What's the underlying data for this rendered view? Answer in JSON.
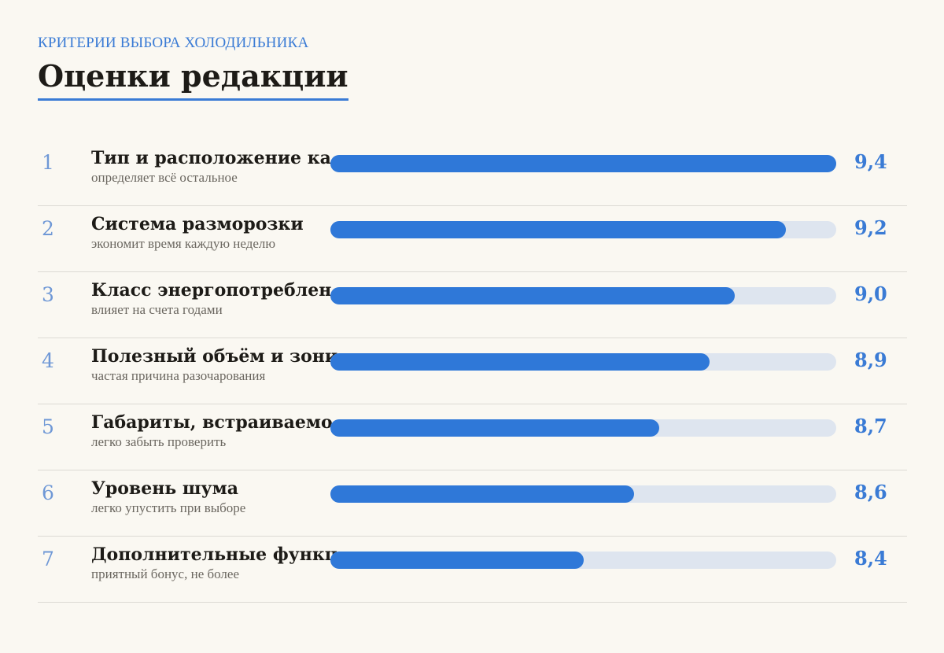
{
  "header": {
    "eyebrow": "КРИТЕРИИ ВЫБОРА ХОЛОДИЛЬНИКА",
    "title": "Оценки редакции"
  },
  "colors": {
    "accent": "#2f78d8",
    "track": "#dee5ef",
    "rank": "#6f98d6",
    "background": "#faf8f2"
  },
  "chart_data": {
    "type": "bar",
    "orientation": "horizontal",
    "xlim": [
      7.4,
      9.4
    ],
    "categories": [
      "Тип и расположение ка",
      "Система разморозки",
      "Класс энергопотреблен",
      "Полезный объём и зони",
      "Габариты, встраиваемо",
      "Уровень шума",
      "Дополнительные функц"
    ],
    "values": [
      9.4,
      9.2,
      9.0,
      8.9,
      8.7,
      8.6,
      8.4
    ],
    "rows": [
      {
        "rank": "1",
        "name": "Тип и расположение ка",
        "note": "определяет всё остальное",
        "value": 9.4,
        "value_label": "9,4"
      },
      {
        "rank": "2",
        "name": "Система разморозки",
        "note": "экономит время каждую неделю",
        "value": 9.2,
        "value_label": "9,2"
      },
      {
        "rank": "3",
        "name": "Класс энергопотреблен",
        "note": "влияет на счета годами",
        "value": 9.0,
        "value_label": "9,0"
      },
      {
        "rank": "4",
        "name": "Полезный объём и зони",
        "note": "частая причина разочарования",
        "value": 8.9,
        "value_label": "8,9"
      },
      {
        "rank": "5",
        "name": "Габариты, встраиваемо",
        "note": "легко забыть проверить",
        "value": 8.7,
        "value_label": "8,7"
      },
      {
        "rank": "6",
        "name": "Уровень шума",
        "note": "легко упустить при выборе",
        "value": 8.6,
        "value_label": "8,6"
      },
      {
        "rank": "7",
        "name": "Дополнительные функц",
        "note": "приятный бонус, не более",
        "value": 8.4,
        "value_label": "8,4"
      }
    ]
  }
}
